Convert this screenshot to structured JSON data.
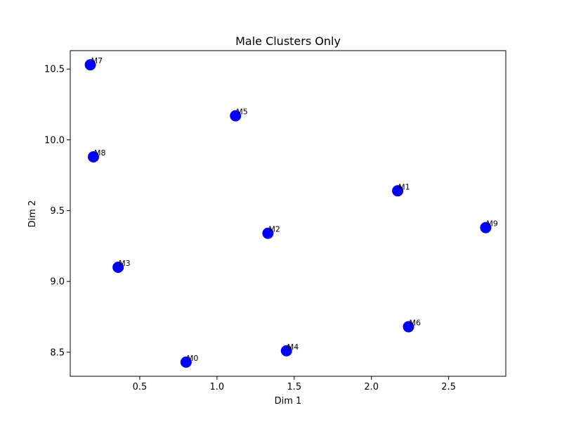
{
  "chart_data": {
    "type": "scatter",
    "title": "Male Clusters Only",
    "xlabel": "Dim 1",
    "ylabel": "Dim 2",
    "xlim": [
      0.05,
      2.87
    ],
    "ylim": [
      8.33,
      10.63
    ],
    "xticks": [
      0.5,
      1.0,
      1.5,
      2.0,
      2.5
    ],
    "yticks": [
      8.5,
      9.0,
      9.5,
      10.0,
      10.5
    ],
    "xtick_labels": [
      "0.5",
      "1.0",
      "1.5",
      "2.0",
      "2.5"
    ],
    "ytick_labels": [
      "8.5",
      "9.0",
      "9.5",
      "10.0",
      "10.5"
    ],
    "grid": false,
    "marker_color": "#0000ff",
    "points": [
      {
        "label": "M0",
        "x": 0.8,
        "y": 8.43
      },
      {
        "label": "M1",
        "x": 2.17,
        "y": 9.64
      },
      {
        "label": "M2",
        "x": 1.33,
        "y": 9.34
      },
      {
        "label": "M3",
        "x": 0.36,
        "y": 9.1
      },
      {
        "label": "M4",
        "x": 1.45,
        "y": 8.51
      },
      {
        "label": "M5",
        "x": 1.12,
        "y": 10.17
      },
      {
        "label": "M6",
        "x": 2.24,
        "y": 8.68
      },
      {
        "label": "M7",
        "x": 0.18,
        "y": 10.53
      },
      {
        "label": "M8",
        "x": 0.2,
        "y": 9.88
      },
      {
        "label": "M9",
        "x": 2.74,
        "y": 9.38
      }
    ]
  }
}
